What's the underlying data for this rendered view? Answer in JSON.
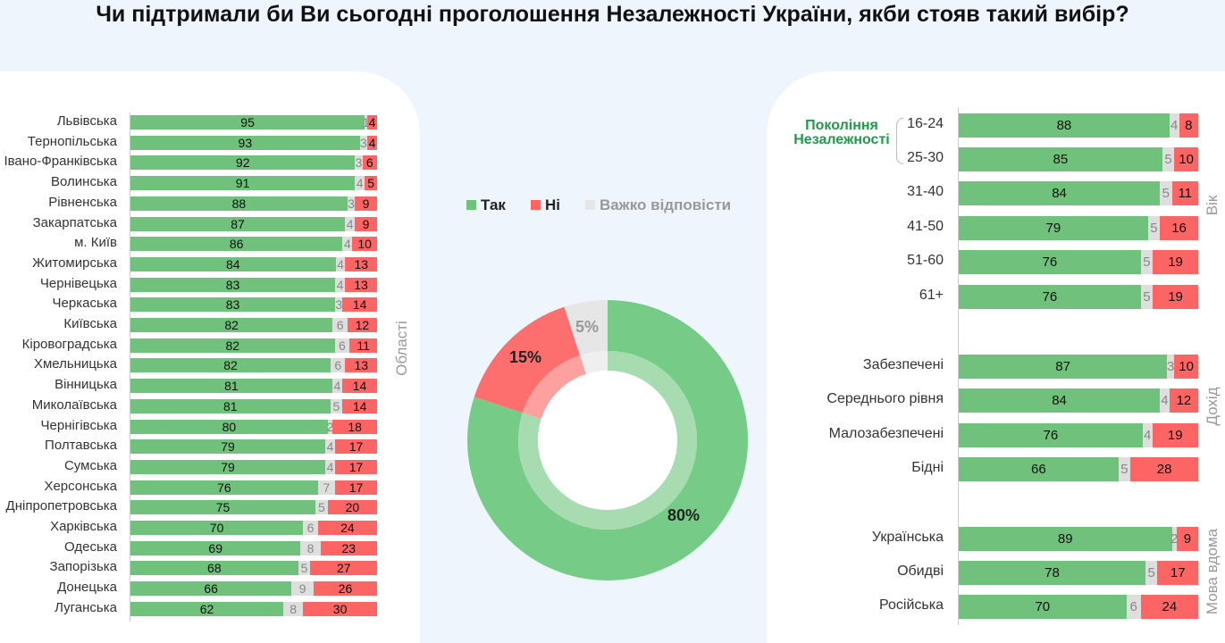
{
  "title": "Чи підтримали би Ви сьогодні проголошення Незалежності України, якби стояв такий вибір?",
  "colors": {
    "yes": "#70c17c",
    "no": "#fd6464",
    "dk": "#dedede"
  },
  "chart_data": [
    {
      "type": "bar",
      "stacked": true,
      "orientation": "horizontal",
      "group_label": "Області",
      "series_names": [
        "Так",
        "Важко відповісти",
        "Ні"
      ],
      "categories": [
        "Львівська",
        "Тернопільська",
        "Івано-Франківська",
        "Волинська",
        "Рівненська",
        "Закарпатська",
        "м. Київ",
        "Житомирська",
        "Чернівецька",
        "Черкаська",
        "Київська",
        "Кіровоградська",
        "Хмельницька",
        "Вінницька",
        "Миколаївська",
        "Чернігівська",
        "Полтавська",
        "Сумська",
        "Херсонська",
        "Дніпропетровська",
        "Харківська",
        "Одеська",
        "Запорізька",
        "Донецька",
        "Луганська"
      ],
      "yes": [
        95,
        93,
        92,
        91,
        88,
        87,
        86,
        84,
        83,
        83,
        82,
        82,
        82,
        81,
        81,
        80,
        79,
        79,
        76,
        75,
        70,
        69,
        68,
        66,
        62
      ],
      "dk": [
        1,
        3,
        3,
        4,
        3,
        4,
        4,
        4,
        4,
        3,
        6,
        6,
        6,
        4,
        5,
        2,
        4,
        4,
        7,
        5,
        6,
        8,
        5,
        9,
        8
      ],
      "no": [
        4,
        4,
        6,
        5,
        9,
        9,
        10,
        13,
        13,
        14,
        12,
        11,
        13,
        14,
        14,
        18,
        17,
        17,
        17,
        20,
        24,
        23,
        27,
        26,
        30
      ]
    },
    {
      "type": "pie",
      "donut": true,
      "legend": [
        "Так",
        "Ні",
        "Важко відповісти"
      ],
      "values": [
        80,
        15,
        5
      ],
      "labels": [
        "80%",
        "15%",
        "5%"
      ]
    },
    {
      "type": "bar",
      "stacked": true,
      "orientation": "horizontal",
      "groups": [
        {
          "label": "Вік",
          "categories": [
            "16-24",
            "25-30",
            "31-40",
            "41-50",
            "51-60",
            "61+"
          ],
          "yes": [
            88,
            85,
            84,
            79,
            76,
            76
          ],
          "dk": [
            4,
            5,
            5,
            5,
            5,
            5
          ],
          "no": [
            8,
            10,
            11,
            16,
            19,
            19
          ]
        },
        {
          "label": "Дохід",
          "categories": [
            "Забезпечені",
            "Середнього рівня",
            "Малозабезпечені",
            "Бідні"
          ],
          "yes": [
            87,
            84,
            76,
            66
          ],
          "dk": [
            3,
            4,
            4,
            5
          ],
          "no": [
            10,
            12,
            19,
            28
          ]
        },
        {
          "label": "Мова вдома",
          "categories": [
            "Українська",
            "Обидві",
            "Російська"
          ],
          "yes": [
            89,
            78,
            70
          ],
          "dk": [
            2,
            5,
            6
          ],
          "no": [
            9,
            17,
            24
          ]
        }
      ],
      "annotation": "Покоління Незалежності"
    }
  ]
}
